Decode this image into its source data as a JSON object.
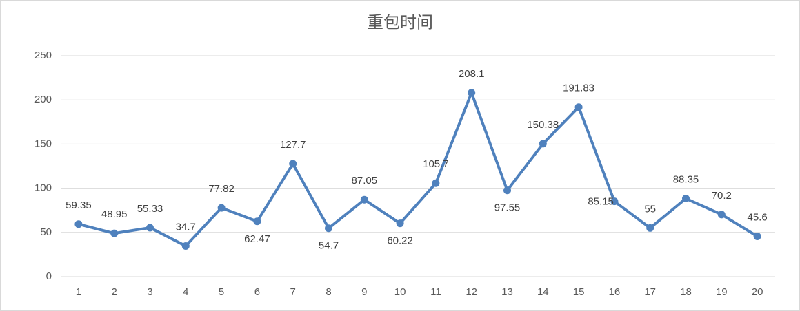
{
  "chart_data": {
    "type": "line",
    "title": "重包时间",
    "categories": [
      "1",
      "2",
      "3",
      "4",
      "5",
      "6",
      "7",
      "8",
      "9",
      "10",
      "11",
      "12",
      "13",
      "14",
      "15",
      "16",
      "17",
      "18",
      "19",
      "20"
    ],
    "values": [
      59.35,
      48.95,
      55.33,
      34.7,
      77.82,
      62.47,
      127.7,
      54.7,
      87.05,
      60.22,
      105.7,
      208.1,
      97.55,
      150.38,
      191.83,
      85.15,
      55,
      88.35,
      70.2,
      45.6
    ],
    "color": "#4f81bd",
    "ylim": [
      0,
      250
    ],
    "yticks": [
      0,
      50,
      100,
      150,
      200,
      250
    ],
    "grid": true
  }
}
